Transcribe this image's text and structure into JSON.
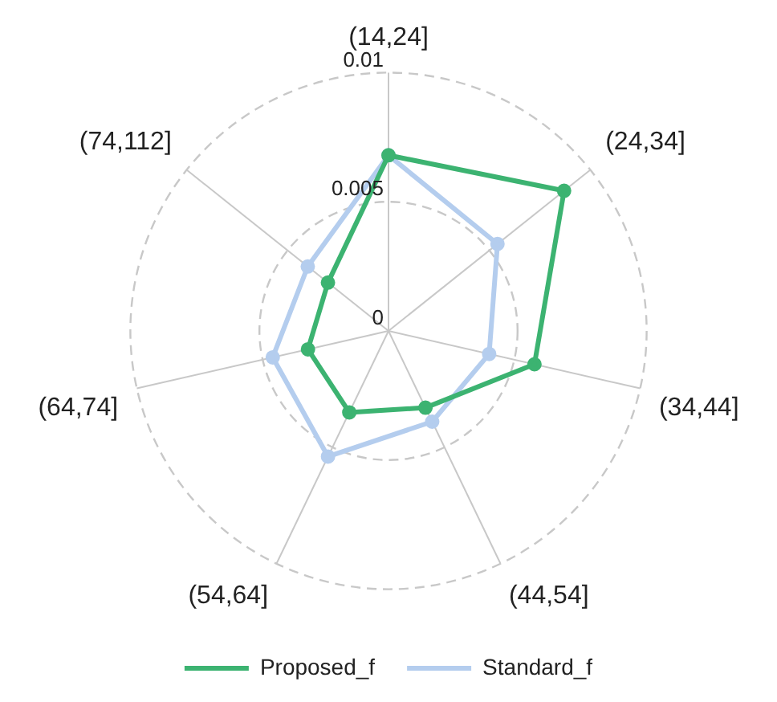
{
  "chart_data": {
    "type": "radar",
    "categories": [
      "(14,24]",
      "(24,34]",
      "(34,44]",
      "(44,54]",
      "(54,64]",
      "(64,74]",
      "(74,112]"
    ],
    "series": [
      {
        "name": "Proposed_f",
        "color": "#3cb371",
        "values": [
          0.0068,
          0.0087,
          0.0058,
          0.0033,
          0.0035,
          0.0032,
          0.003
        ]
      },
      {
        "name": "Standard_f",
        "color": "#b4cdee",
        "values": [
          0.0068,
          0.0054,
          0.004,
          0.0039,
          0.0054,
          0.0046,
          0.004
        ]
      }
    ],
    "ylim": [
      0,
      0.01
    ],
    "yticks": [
      0,
      0.005,
      0.01
    ],
    "grid": true,
    "legend": "bottom",
    "marker": "circle",
    "line_style": "solid"
  }
}
